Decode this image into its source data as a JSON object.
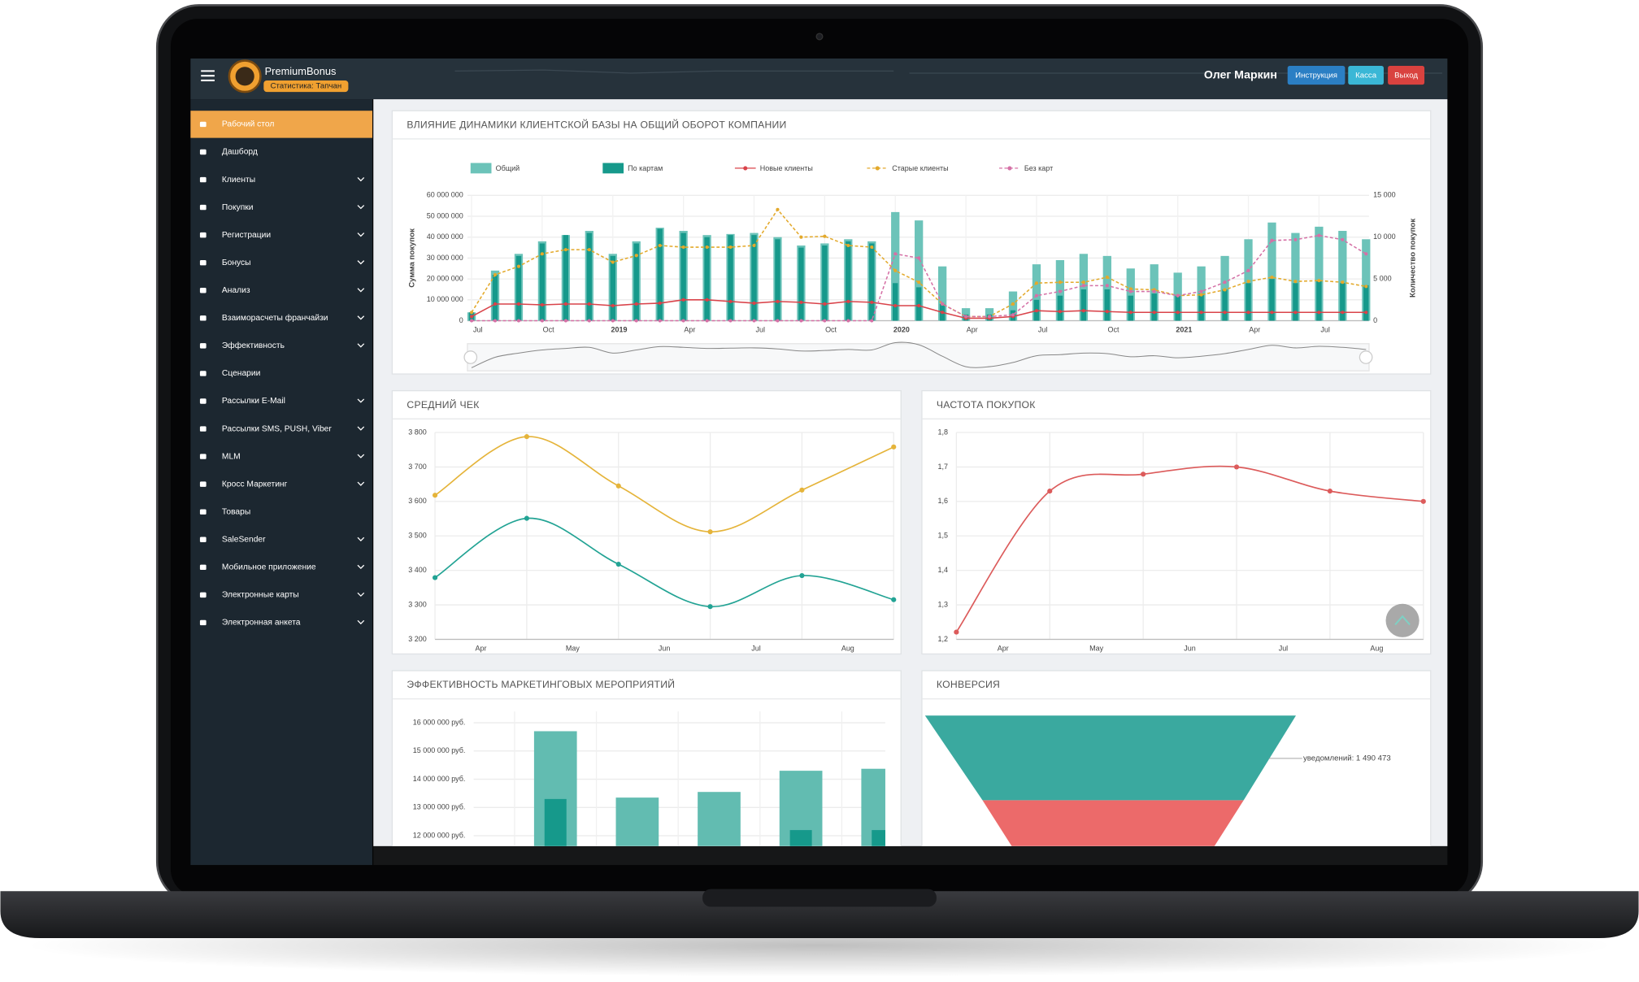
{
  "header": {
    "brand": "PremiumBonus",
    "badge": "Статистика: Тапчан",
    "user": "Олег Маркин",
    "buttons": [
      {
        "label": "Инструкция",
        "color": "#2b7fc4"
      },
      {
        "label": "Касса",
        "color": "#3ab7d6"
      },
      {
        "label": "Выход",
        "color": "#d9423f"
      }
    ]
  },
  "sidebar": {
    "items": [
      {
        "label": "Рабочий стол",
        "submenu": false,
        "active": true
      },
      {
        "label": "Дашборд",
        "submenu": false
      },
      {
        "label": "Клиенты",
        "submenu": true
      },
      {
        "label": "Покупки",
        "submenu": true
      },
      {
        "label": "Регистрации",
        "submenu": true
      },
      {
        "label": "Бонусы",
        "submenu": true
      },
      {
        "label": "Анализ",
        "submenu": true
      },
      {
        "label": "Взаиморасчеты франчайзи",
        "submenu": true
      },
      {
        "label": "Эффективность",
        "submenu": true
      },
      {
        "label": "Сценарии",
        "submenu": false
      },
      {
        "label": "Рассылки E-Mail",
        "submenu": true
      },
      {
        "label": "Рассылки SMS, PUSH, Viber",
        "submenu": true
      },
      {
        "label": "MLM",
        "submenu": true
      },
      {
        "label": "Кросс Маркетинг",
        "submenu": true
      },
      {
        "label": "Товары",
        "submenu": false
      },
      {
        "label": "SaleSender",
        "submenu": true
      },
      {
        "label": "Мобильное приложение",
        "submenu": true
      },
      {
        "label": "Электронные карты",
        "submenu": true
      },
      {
        "label": "Электронная анкета",
        "submenu": true
      }
    ]
  },
  "chart_data": [
    {
      "type": "bar_line",
      "title": "ВЛИЯНИЕ ДИНАМИКИ КЛИЕНТСКОЙ БАЗЫ НА ОБЩИЙ ОБОРОТ КОМПАНИИ",
      "ylabel": "Сумма покупок",
      "y2label": "Количество покупок",
      "grid": true,
      "categories": [
        "Jul",
        null,
        null,
        "Oct",
        null,
        null,
        "2019",
        null,
        null,
        "Apr",
        null,
        null,
        "Jul",
        null,
        null,
        "Oct",
        null,
        null,
        "2020",
        null,
        null,
        "Apr",
        null,
        null,
        "Jul",
        null,
        null,
        "Oct",
        null,
        null,
        "2021",
        null,
        null,
        "Apr",
        null,
        null,
        "Jul",
        null,
        null
      ],
      "ylim": [
        0,
        60000000
      ],
      "yticks": [
        0,
        {
          "value": 10000000,
          "label": "10 000 000"
        },
        {
          "value": 20000000,
          "label": "20 000 000"
        },
        {
          "value": 30000000,
          "label": "30 000 000"
        },
        {
          "value": 40000000,
          "label": "40 000 000"
        },
        {
          "value": 50000000,
          "label": "50 000 000"
        },
        {
          "value": 60000000,
          "label": "60 000 000"
        }
      ],
      "y2lim": [
        0,
        15000
      ],
      "y2ticks": [
        0,
        {
          "value": 5000,
          "label": "5 000"
        },
        {
          "value": 10000,
          "label": "10 000"
        },
        {
          "value": 15000,
          "label": "15 000"
        }
      ],
      "series": [
        {
          "name": "Общий",
          "kind": "bar",
          "color": "#6cc3b9",
          "values": [
            4000000,
            24000000,
            32000000,
            38000000,
            41000000,
            43000000,
            32000000,
            38000000,
            44500000,
            43000000,
            41000000,
            41500000,
            42000000,
            40000000,
            36000000,
            37000000,
            39000000,
            38000000,
            52000000,
            48000000,
            26000000,
            6000000,
            6000000,
            14000000,
            27000000,
            29000000,
            32000000,
            31000000,
            25000000,
            27000000,
            23000000,
            26000000,
            31000000,
            39000000,
            47000000,
            42000000,
            45000000,
            43000000,
            39000000
          ]
        },
        {
          "name": "По картам",
          "kind": "bar",
          "color": "#16998b",
          "values": [
            4000000,
            22000000,
            31000000,
            37000000,
            41000000,
            42000000,
            31000000,
            37000000,
            44000000,
            42000000,
            40000000,
            41000000,
            41000000,
            39000000,
            35000000,
            36000000,
            38000000,
            37000000,
            18000000,
            16000000,
            8000000,
            3000000,
            3000000,
            5000000,
            10000000,
            12000000,
            15000000,
            15000000,
            12000000,
            13000000,
            12000000,
            13000000,
            15000000,
            18000000,
            20000000,
            18000000,
            19000000,
            18000000,
            17000000
          ]
        },
        {
          "name": "Новые клиенты",
          "kind": "line",
          "axis": "y2",
          "color": "#d9434a",
          "values": [
            500,
            2000,
            2000,
            1900,
            2000,
            2000,
            1800,
            2000,
            2100,
            2500,
            2500,
            2300,
            2100,
            2300,
            2200,
            2000,
            2300,
            2200,
            1800,
            1800,
            1000,
            300,
            300,
            500,
            1200,
            1100,
            1200,
            1100,
            1000,
            1000,
            1000,
            1000,
            1000,
            1000,
            1000,
            1000,
            1000,
            1000,
            1000
          ]
        },
        {
          "name": "Старые клиенты",
          "kind": "line",
          "axis": "y2",
          "dashed": true,
          "color": "#e3a92b",
          "values": [
            1000,
            5500,
            6500,
            8000,
            8500,
            8500,
            7000,
            7800,
            9000,
            8800,
            8800,
            8800,
            9000,
            13300,
            10000,
            10100,
            9000,
            8800,
            6000,
            4600,
            2000,
            500,
            500,
            2000,
            4500,
            4600,
            4600,
            5200,
            3800,
            3700,
            3000,
            3100,
            3700,
            4700,
            5200,
            4700,
            4800,
            4600,
            4100
          ]
        },
        {
          "name": "Без карт",
          "kind": "line",
          "axis": "y2",
          "dashed": true,
          "color": "#d571a6",
          "values": [
            0,
            0,
            0,
            0,
            0,
            0,
            0,
            0,
            0,
            0,
            0,
            0,
            0,
            0,
            0,
            0,
            0,
            0,
            8000,
            7500,
            2000,
            500,
            500,
            700,
            3000,
            3500,
            4200,
            4200,
            3500,
            3500,
            3000,
            3500,
            4600,
            6000,
            9600,
            9700,
            10200,
            9700,
            8000
          ]
        }
      ]
    },
    {
      "type": "line",
      "title": "СРЕДНИЙ ЧЕК",
      "grid": true,
      "smooth": true,
      "x": [
        0,
        1,
        2,
        3,
        4,
        5
      ],
      "xlim": [
        0,
        5
      ],
      "xticks": [
        {
          "value": 0.5,
          "label": "Apr"
        },
        {
          "value": 1.5,
          "label": "May"
        },
        {
          "value": 2.5,
          "label": "Jun"
        },
        {
          "value": 3.5,
          "label": "Jul"
        },
        {
          "value": 4.5,
          "label": "Aug"
        }
      ],
      "ylim": [
        3200,
        3800
      ],
      "yticks": [
        {
          "value": 3200,
          "label": "3 200"
        },
        {
          "value": 3300,
          "label": "3 300"
        },
        {
          "value": 3400,
          "label": "3 400"
        },
        {
          "value": 3500,
          "label": "3 500"
        },
        {
          "value": 3600,
          "label": "3 600"
        },
        {
          "value": 3700,
          "label": "3 700"
        },
        {
          "value": 3800,
          "label": "3 800"
        }
      ],
      "series": [
        {
          "color": "#e5b43a",
          "values": [
            3618,
            3788,
            3645,
            3512,
            3633,
            3758
          ]
        },
        {
          "color": "#22a394",
          "values": [
            3379,
            3551,
            3418,
            3295,
            3385,
            3315
          ]
        }
      ]
    },
    {
      "type": "line",
      "title": "ЧАСТОТА ПОКУПОК",
      "grid": true,
      "smooth": true,
      "x": [
        0,
        1,
        2,
        3,
        4,
        5
      ],
      "xlim": [
        0,
        5
      ],
      "xticks": [
        {
          "value": 0.5,
          "label": "Apr"
        },
        {
          "value": 1.5,
          "label": "May"
        },
        {
          "value": 2.5,
          "label": "Jun"
        },
        {
          "value": 3.5,
          "label": "Jul"
        },
        {
          "value": 4.5,
          "label": "Aug"
        }
      ],
      "ylim": [
        1.2,
        1.8
      ],
      "yticks": [
        {
          "value": 1.2,
          "label": "1,2"
        },
        {
          "value": 1.3,
          "label": "1,3"
        },
        {
          "value": 1.4,
          "label": "1,4"
        },
        {
          "value": 1.5,
          "label": "1,5"
        },
        {
          "value": 1.6,
          "label": "1,6"
        },
        {
          "value": 1.7,
          "label": "1,7"
        },
        {
          "value": 1.8,
          "label": "1,8"
        }
      ],
      "series": [
        {
          "color": "#dc5b5b",
          "values": [
            1.221,
            1.63,
            1.679,
            1.7,
            1.63,
            1.6
          ]
        }
      ]
    },
    {
      "type": "bar",
      "title": "ЭФФЕКТИВНОСТЬ МАРКЕТИНГОВЫХ МЕРОПРИЯТИЙ",
      "grid": true,
      "categories": [
        null,
        null,
        null,
        null,
        null
      ],
      "ylim": [
        11600000,
        16400000
      ],
      "yticks": [
        {
          "value": 12000000,
          "label": "12 000 000 руб."
        },
        {
          "value": 13000000,
          "label": "13 000 000 руб."
        },
        {
          "value": 14000000,
          "label": "14 000 000 руб."
        },
        {
          "value": 15000000,
          "label": "15 000 000 руб."
        },
        {
          "value": 16000000,
          "label": "16 000 000 руб."
        }
      ],
      "series": [
        {
          "color": "#62bcb1",
          "values": [
            15700000,
            13350000,
            13550000,
            14300000,
            14370000
          ]
        },
        {
          "color": "#16998b",
          "values": [
            13300000,
            null,
            null,
            12200000,
            12200000
          ]
        }
      ]
    },
    {
      "type": "funnel",
      "title": "КОНВЕРСИЯ",
      "colors": [
        "#3aa99f"
      ],
      "values": [
        1490473
      ],
      "value_labels": [
        "уведомлений: 1 490 473"
      ]
    }
  ]
}
